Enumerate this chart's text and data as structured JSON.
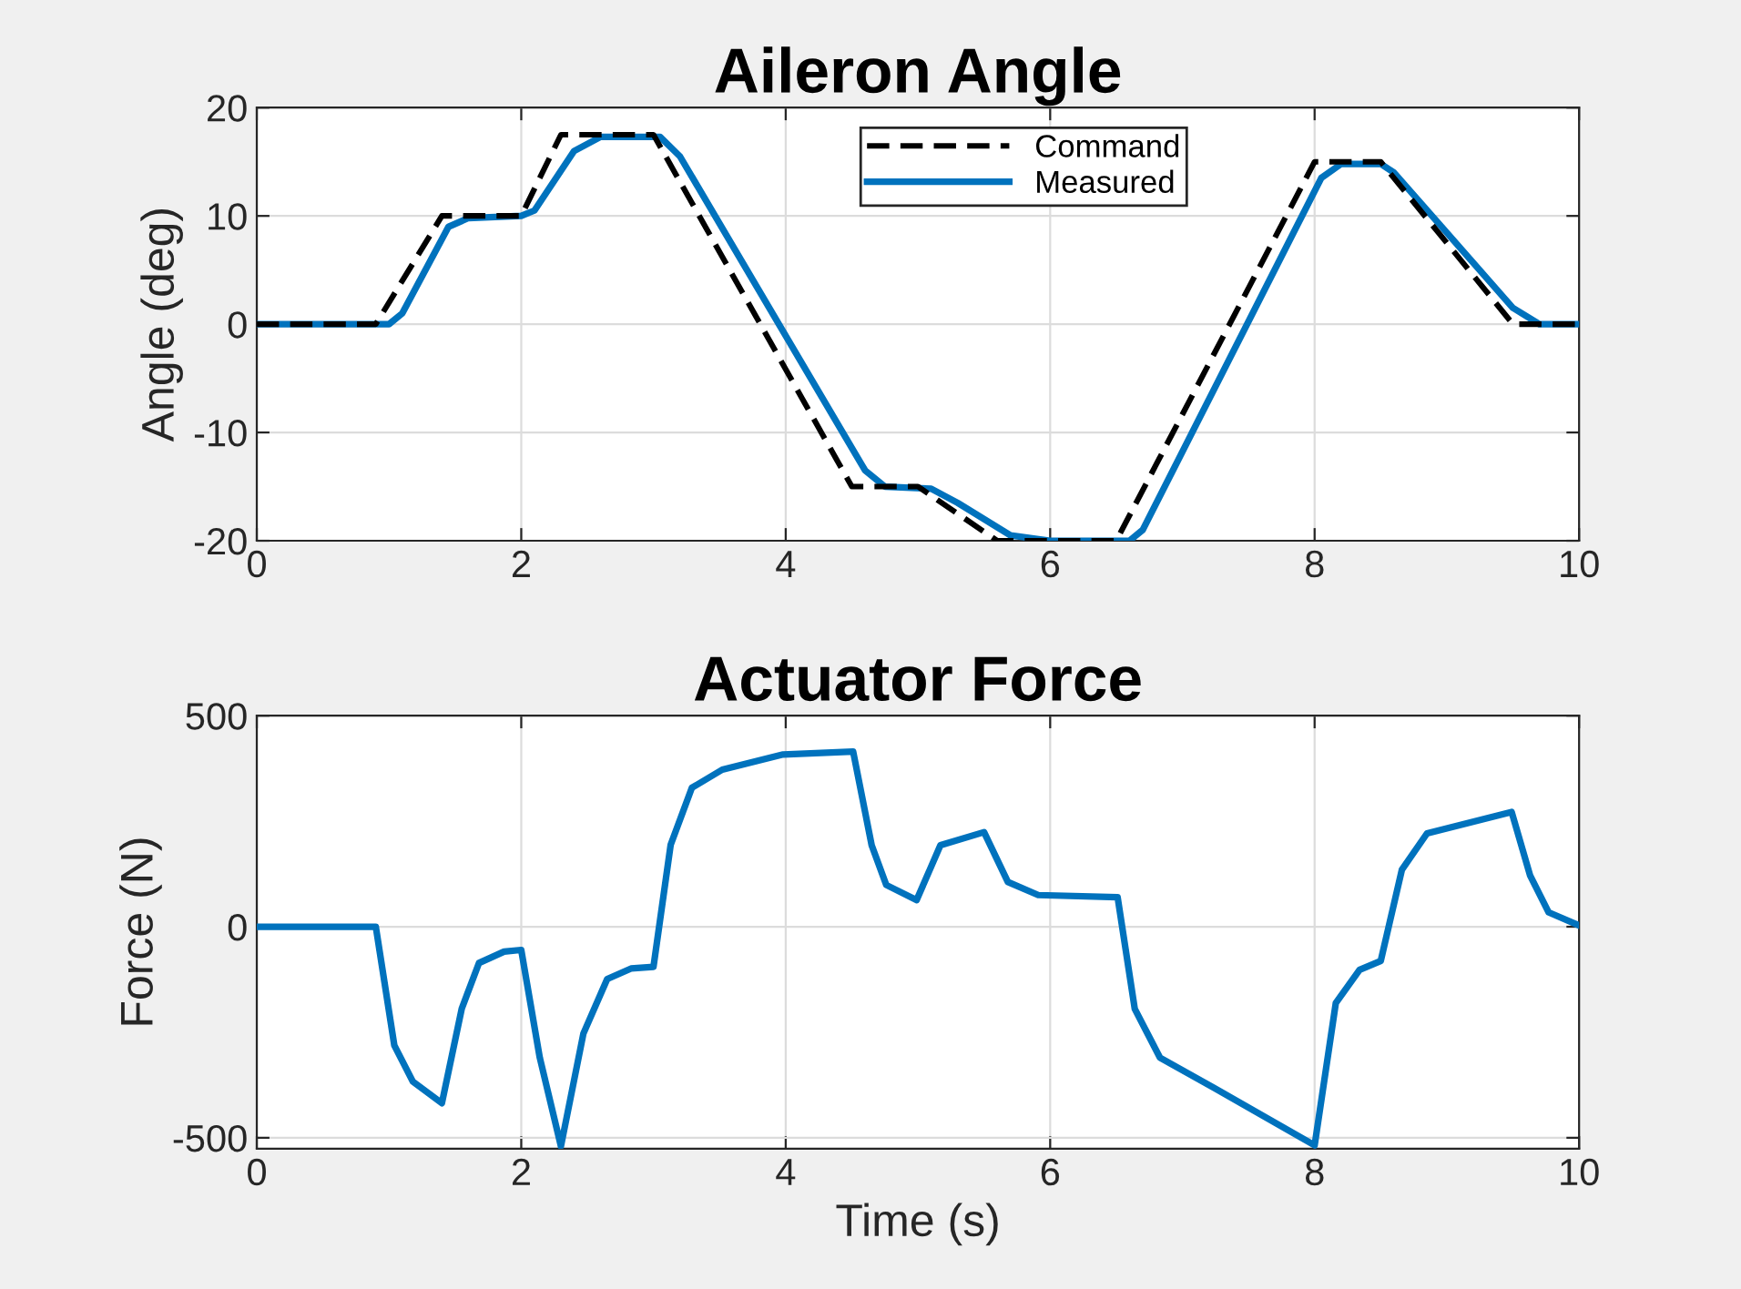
{
  "chart_data": [
    {
      "type": "line",
      "title": "Aileron Angle",
      "ylabel": "Angle (deg)",
      "xlim": [
        0,
        10
      ],
      "ylim": [
        -20,
        20
      ],
      "xticks": [
        0,
        2,
        4,
        6,
        8,
        10
      ],
      "yticks": [
        -20,
        -10,
        0,
        10,
        20
      ],
      "grid": true,
      "legend": "top",
      "series": [
        {
          "name": "Command",
          "color": "#000000",
          "line_style": "dashed",
          "x": [
            0,
            0.9,
            1.4,
            2.0,
            2.3,
            3.0,
            4.5,
            5.0,
            5.6,
            6.5,
            8.0,
            8.5,
            9.5,
            10
          ],
          "values": [
            0,
            0,
            10,
            10,
            17.5,
            17.5,
            -15,
            -15,
            -20,
            -20,
            15,
            15,
            0,
            0
          ]
        },
        {
          "name": "Measured",
          "color": "#0072bd",
          "line_style": "solid",
          "x": [
            0,
            1.0,
            1.1,
            1.45,
            1.6,
            2.0,
            2.1,
            2.4,
            2.6,
            3.05,
            3.2,
            4.6,
            4.75,
            5.1,
            5.3,
            5.7,
            6.0,
            6.6,
            6.7,
            8.05,
            8.2,
            8.5,
            8.6,
            9.5,
            9.7,
            10
          ],
          "values": [
            0,
            0,
            1,
            9,
            9.8,
            10,
            10.5,
            16,
            17.3,
            17.3,
            15.5,
            -13.5,
            -15,
            -15.2,
            -16.5,
            -19.5,
            -20,
            -20,
            -19,
            13.5,
            14.8,
            14.8,
            14,
            1.5,
            0,
            0
          ]
        }
      ]
    },
    {
      "type": "line",
      "title": "Actuator Force",
      "ylabel": "Force (N)",
      "xlabel": "Time (s)",
      "xlim": [
        0,
        10
      ],
      "ylim": [
        -526,
        500
      ],
      "xticks": [
        0,
        2,
        4,
        6,
        8,
        10
      ],
      "yticks": [
        -500,
        0,
        500
      ],
      "grid": true,
      "series": [
        {
          "color": "#0072bd",
          "line_style": "solid",
          "x": [
            0,
            0.9,
            1.04,
            1.18,
            1.4,
            1.55,
            1.68,
            1.87,
            2.0,
            2.14,
            2.3,
            2.47,
            2.65,
            2.83,
            3.0,
            3.13,
            3.29,
            3.52,
            3.98,
            4.51,
            4.65,
            4.76,
            4.99,
            5.17,
            5.5,
            5.68,
            5.91,
            6.51,
            6.64,
            6.83,
            7.24,
            8.0,
            8.16,
            8.34,
            8.5,
            8.66,
            8.85,
            9.49,
            9.63,
            9.77,
            10
          ],
          "values": [
            0,
            0,
            -281,
            -367,
            -418,
            -194,
            -86,
            -59,
            -55,
            -310,
            -520,
            -253,
            -124,
            -99,
            -95,
            194,
            329,
            372,
            408,
            415,
            193,
            99,
            63,
            193,
            224,
            106,
            75,
            70,
            -195,
            -310,
            -382,
            -518,
            -181,
            -102,
            -81,
            135,
            221,
            272,
            121,
            34,
            3
          ]
        }
      ]
    }
  ]
}
